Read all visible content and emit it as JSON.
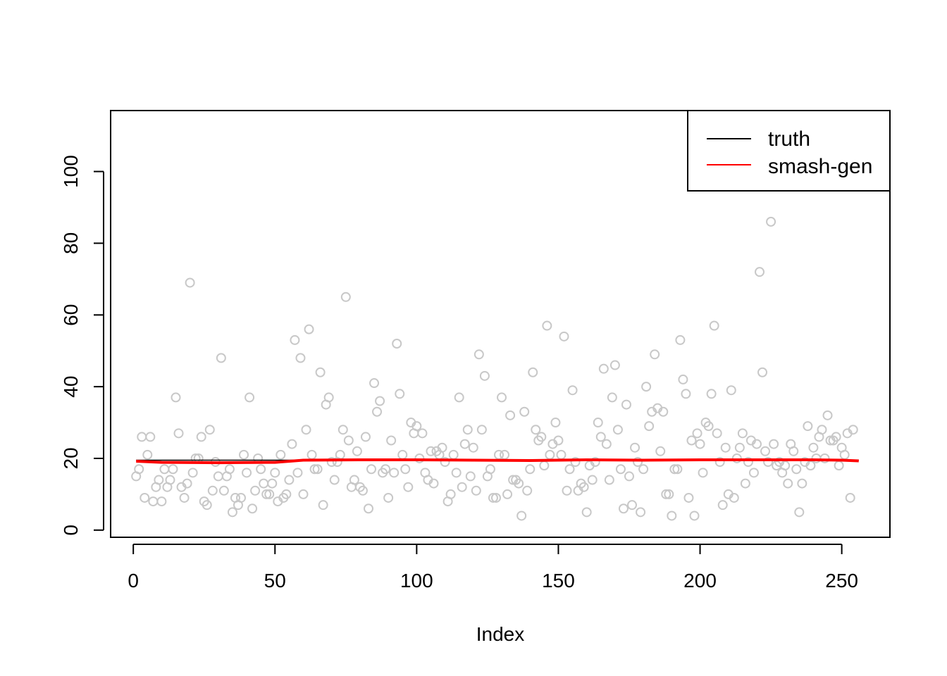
{
  "chart_data": {
    "type": "scatter",
    "title": "",
    "xlabel": "Index",
    "ylabel": "",
    "xlim": [
      -8,
      267
    ],
    "ylim": [
      -2,
      117
    ],
    "x_ticks": [
      0,
      50,
      100,
      150,
      200,
      250
    ],
    "y_ticks": [
      0,
      20,
      40,
      60,
      80,
      100
    ],
    "x_tick_labels": [
      "0",
      "50",
      "100",
      "150",
      "200",
      "250"
    ],
    "y_tick_labels": [
      "0",
      "20",
      "40",
      "60",
      "80",
      "100"
    ],
    "grid": false,
    "legend": {
      "placement": "top-right",
      "entries": [
        {
          "label": "truth",
          "color": "#000000"
        },
        {
          "label": "smash-gen",
          "color": "#ff0000"
        }
      ]
    },
    "points": {
      "color": "#c8c8c8",
      "x_start": 1,
      "values": [
        15,
        17,
        26,
        9,
        21,
        26,
        8,
        12,
        14,
        8,
        17,
        12,
        14,
        17,
        37,
        27,
        12,
        9,
        13,
        69,
        16,
        20,
        20,
        26,
        8,
        7,
        28,
        11,
        19,
        15,
        48,
        11,
        15,
        17,
        5,
        9,
        7,
        9,
        21,
        16,
        37,
        6,
        11,
        20,
        17,
        13,
        10,
        10,
        13,
        16,
        8,
        21,
        9,
        10,
        14,
        24,
        53,
        16,
        48,
        10,
        28,
        56,
        21,
        17,
        17,
        44,
        7,
        35,
        37,
        19,
        14,
        19,
        21,
        28,
        65,
        25,
        12,
        14,
        22,
        12,
        11,
        26,
        6,
        17,
        41,
        33,
        36,
        16,
        17,
        9,
        25,
        16,
        52,
        38,
        21,
        17,
        12,
        30,
        27,
        29,
        20,
        27,
        16,
        14,
        22,
        13,
        22,
        21,
        23,
        19,
        8,
        10,
        21,
        16,
        37,
        12,
        24,
        28,
        15,
        23,
        11,
        49,
        28,
        43,
        15,
        17,
        9,
        9,
        21,
        37,
        21,
        10,
        32,
        14,
        14,
        13,
        4,
        33,
        11,
        17,
        44,
        28,
        25,
        26,
        18,
        57,
        21,
        24,
        30,
        25,
        21,
        54,
        11,
        17,
        39,
        19,
        11,
        13,
        12,
        5,
        18,
        14,
        19,
        30,
        26,
        45,
        24,
        14,
        37,
        46,
        28,
        17,
        6,
        35,
        15,
        7,
        23,
        19,
        5,
        17,
        40,
        29,
        33,
        49,
        34,
        22,
        33,
        10,
        10,
        4,
        17,
        17,
        53,
        42,
        38,
        9,
        25,
        4,
        27,
        24,
        16,
        30,
        29,
        38,
        57,
        27,
        19,
        7,
        23,
        10,
        39,
        9,
        20,
        23,
        27,
        13,
        19,
        25,
        16,
        24,
        72,
        44,
        22,
        19,
        86,
        24,
        18,
        19,
        16,
        18,
        13,
        24,
        22,
        17,
        5,
        13,
        19,
        29,
        18,
        23,
        20,
        26,
        28,
        20,
        32,
        25,
        25,
        26,
        18,
        23,
        21,
        27,
        9,
        28
      ]
    },
    "series": [
      {
        "name": "truth",
        "color": "#000000",
        "x": [
          1,
          256
        ],
        "values": [
          19.5,
          19.5
        ]
      },
      {
        "name": "smash-gen",
        "color": "#ff0000",
        "x": [
          1,
          10,
          30,
          50,
          60,
          80,
          100,
          120,
          140,
          160,
          180,
          200,
          220,
          240,
          250,
          256
        ],
        "values": [
          19.2,
          18.9,
          18.8,
          18.9,
          19.5,
          19.6,
          19.6,
          19.5,
          19.4,
          19.6,
          19.5,
          19.6,
          19.6,
          19.6,
          19.5,
          19.3
        ]
      }
    ]
  }
}
